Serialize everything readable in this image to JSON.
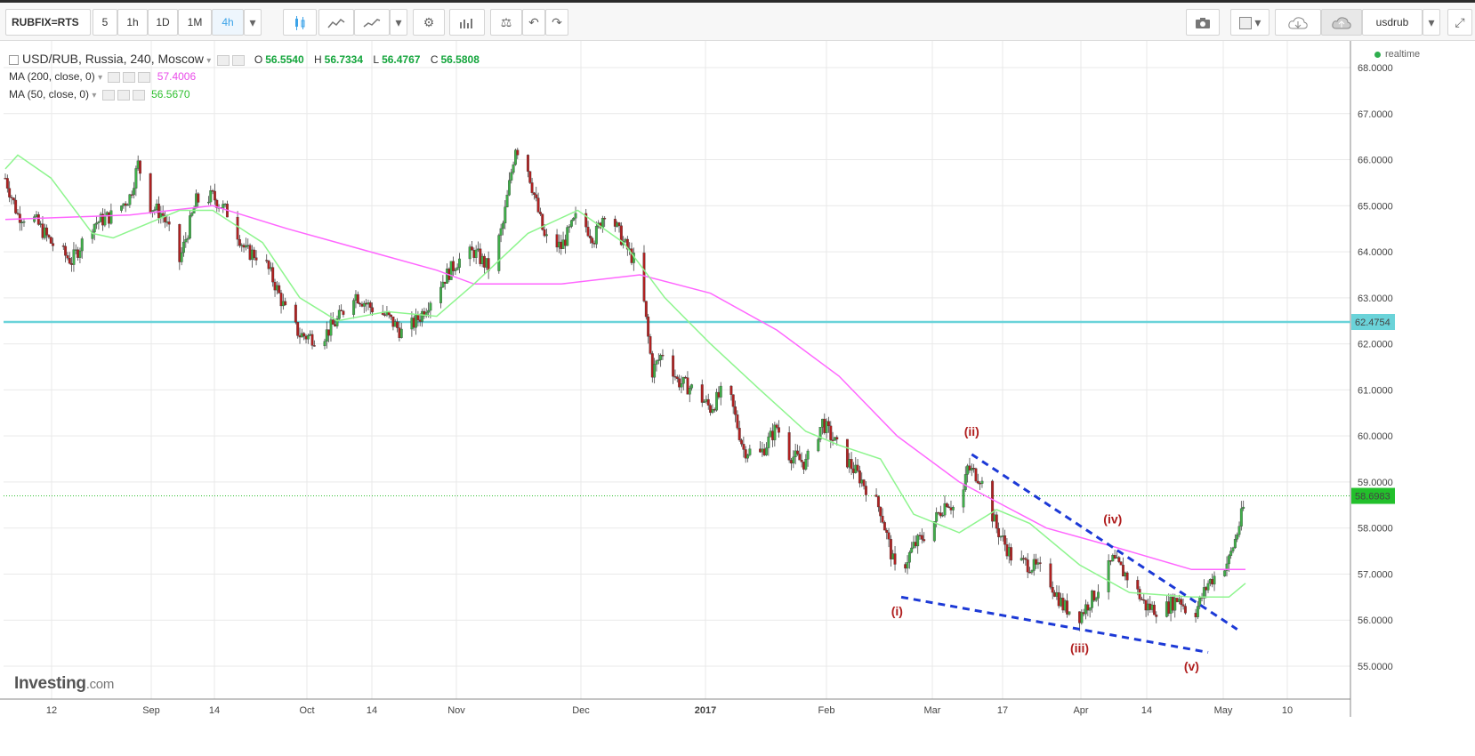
{
  "toolbar": {
    "symbol": "RUBFIX=RTS",
    "intervals": [
      "5",
      "1h",
      "1D",
      "1M",
      "4h"
    ],
    "active_interval": "4h",
    "right_label": "usdrub",
    "icons": [
      "chevron-down-icon",
      "candles-icon",
      "line-chart-icon",
      "area-chart-icon",
      "settings-icon",
      "indicators-icon",
      "compare-icon",
      "undo-icon",
      "redo-icon",
      "camera-icon",
      "template-icon",
      "cloud-download-icon",
      "cloud-upload-icon",
      "fullscreen-icon"
    ]
  },
  "legend": {
    "main": "USD/RUB, Russia, 240, Moscow",
    "ohlc": [
      {
        "k": "O",
        "v": "56.5540"
      },
      {
        "k": "H",
        "v": "56.7334"
      },
      {
        "k": "L",
        "v": "56.4767"
      },
      {
        "k": "C",
        "v": "56.5808"
      }
    ],
    "ma200_label": "MA (200, close, 0)",
    "ma200_value": "57.4006",
    "ma50_label": "MA (50, close, 0)",
    "ma50_value": "56.5670",
    "realtime": "realtime"
  },
  "branding": {
    "name": "Investing",
    "suffix": ".com"
  },
  "colors": {
    "up": "#3fae49",
    "down": "#b02121",
    "ma200": "#ff66ff",
    "ma50": "#8ef58e",
    "support": "#6ad3d9",
    "trend": "#1c39d6",
    "wave_label": "#b01e1e",
    "current_price": "#2fbf2f",
    "grid": "#e9e9e9"
  },
  "chart_data": {
    "type": "candlestick",
    "title": "USD/RUB, Russia, 240, Moscow",
    "ylim": [
      55.0,
      68.0
    ],
    "y_ticks": [
      "55.0000",
      "56.0000",
      "57.0000",
      "58.0000",
      "59.0000",
      "60.0000",
      "61.0000",
      "62.0000",
      "63.0000",
      "64.0000",
      "65.0000",
      "66.0000",
      "67.0000",
      "68.0000"
    ],
    "x_ticks": [
      "12",
      "Sep",
      "14",
      "Oct",
      "14",
      "Nov",
      "Dec",
      "2017",
      "Feb",
      "Mar",
      "17",
      "Apr",
      "14",
      "May",
      "10"
    ],
    "price_path": [
      [
        "2016-08-01",
        65.6
      ],
      [
        "2016-08-04",
        64.8
      ],
      [
        "2016-08-08",
        64.7
      ],
      [
        "2016-08-12",
        64.2
      ],
      [
        "2016-08-17",
        63.8
      ],
      [
        "2016-08-22",
        64.6
      ],
      [
        "2016-08-27",
        64.8
      ],
      [
        "2016-08-31",
        65.2
      ],
      [
        "2016-09-02",
        65.9
      ],
      [
        "2016-09-05",
        65.0
      ],
      [
        "2016-09-08",
        64.8
      ],
      [
        "2016-09-12",
        63.8
      ],
      [
        "2016-09-16",
        65.1
      ],
      [
        "2016-09-20",
        65.2
      ],
      [
        "2016-09-24",
        64.8
      ],
      [
        "2016-09-28",
        64.0
      ],
      [
        "2016-10-02",
        63.9
      ],
      [
        "2016-10-05",
        63.3
      ],
      [
        "2016-10-08",
        62.6
      ],
      [
        "2016-10-11",
        62.2
      ],
      [
        "2016-10-16",
        62.1
      ],
      [
        "2016-10-20",
        62.5
      ],
      [
        "2016-10-24",
        63.1
      ],
      [
        "2016-10-28",
        62.8
      ],
      [
        "2016-11-01",
        62.6
      ],
      [
        "2016-11-05",
        62.2
      ],
      [
        "2016-11-09",
        62.6
      ],
      [
        "2016-11-13",
        63.2
      ],
      [
        "2016-11-18",
        63.8
      ],
      [
        "2016-11-22",
        64.0
      ],
      [
        "2016-11-26",
        63.6
      ],
      [
        "2016-11-29",
        64.6
      ],
      [
        "2016-12-02",
        66.3
      ],
      [
        "2016-12-05",
        65.8
      ],
      [
        "2016-12-09",
        64.3
      ],
      [
        "2016-12-13",
        64.1
      ],
      [
        "2016-12-17",
        64.8
      ],
      [
        "2016-12-21",
        64.3
      ],
      [
        "2016-12-24",
        65.0
      ],
      [
        "2016-12-28",
        64.2
      ],
      [
        "2017-01-01",
        63.6
      ],
      [
        "2017-01-04",
        61.4
      ],
      [
        "2017-01-07",
        61.9
      ],
      [
        "2017-01-10",
        61.2
      ],
      [
        "2017-01-14",
        61.0
      ],
      [
        "2017-01-18",
        60.6
      ],
      [
        "2017-01-22",
        61.1
      ],
      [
        "2017-01-26",
        59.7
      ],
      [
        "2017-01-30",
        59.6
      ],
      [
        "2017-02-03",
        60.2
      ],
      [
        "2017-02-06",
        59.6
      ],
      [
        "2017-02-10",
        59.4
      ],
      [
        "2017-02-14",
        60.3
      ],
      [
        "2017-02-18",
        59.7
      ],
      [
        "2017-02-23",
        59.1
      ],
      [
        "2017-02-28",
        58.4
      ],
      [
        "2017-03-04",
        56.9
      ],
      [
        "2017-03-08",
        57.6
      ],
      [
        "2017-03-12",
        58.0
      ],
      [
        "2017-03-16",
        58.6
      ],
      [
        "2017-03-19",
        58.3
      ],
      [
        "2017-03-21",
        59.3
      ],
      [
        "2017-03-24",
        59.1
      ],
      [
        "2017-03-28",
        58.0
      ],
      [
        "2017-04-01",
        57.3
      ],
      [
        "2017-04-05",
        57.2
      ],
      [
        "2017-04-09",
        57.0
      ],
      [
        "2017-04-13",
        56.3
      ],
      [
        "2017-04-17",
        56.1
      ],
      [
        "2017-04-21",
        56.6
      ],
      [
        "2017-04-25",
        57.3
      ],
      [
        "2017-04-29",
        56.9
      ],
      [
        "2017-05-03",
        56.3
      ],
      [
        "2017-05-07",
        56.2
      ],
      [
        "2017-05-11",
        56.5
      ],
      [
        "2017-05-14",
        56.0
      ],
      [
        "2017-05-18",
        56.8
      ],
      [
        "2017-05-21",
        57.1
      ],
      [
        "2017-05-23",
        57.3
      ],
      [
        "2017-05-25",
        57.9
      ],
      [
        "2017-05-27",
        58.6
      ]
    ],
    "ma200_path": [
      [
        "2016-08-01",
        64.7
      ],
      [
        "2016-08-31",
        64.8
      ],
      [
        "2016-09-20",
        65.0
      ],
      [
        "2016-10-08",
        64.5
      ],
      [
        "2016-10-28",
        64.0
      ],
      [
        "2016-11-13",
        63.6
      ],
      [
        "2016-11-22",
        63.3
      ],
      [
        "2016-12-13",
        63.3
      ],
      [
        "2017-01-01",
        63.5
      ],
      [
        "2017-01-18",
        63.1
      ],
      [
        "2017-02-03",
        62.3
      ],
      [
        "2017-02-18",
        61.3
      ],
      [
        "2017-03-04",
        60.0
      ],
      [
        "2017-03-19",
        59.0
      ],
      [
        "2017-04-09",
        58.0
      ],
      [
        "2017-04-25",
        57.6
      ],
      [
        "2017-05-14",
        57.1
      ],
      [
        "2017-05-27",
        57.1
      ]
    ],
    "ma50_path": [
      [
        "2016-08-01",
        65.8
      ],
      [
        "2016-08-04",
        66.1
      ],
      [
        "2016-08-12",
        65.6
      ],
      [
        "2016-08-22",
        64.4
      ],
      [
        "2016-08-27",
        64.3
      ],
      [
        "2016-09-12",
        64.9
      ],
      [
        "2016-09-20",
        64.9
      ],
      [
        "2016-10-02",
        64.2
      ],
      [
        "2016-10-11",
        63.0
      ],
      [
        "2016-10-20",
        62.5
      ],
      [
        "2016-11-01",
        62.7
      ],
      [
        "2016-11-13",
        62.6
      ],
      [
        "2016-11-22",
        63.3
      ],
      [
        "2016-12-05",
        64.4
      ],
      [
        "2016-12-17",
        64.9
      ],
      [
        "2016-12-28",
        64.2
      ],
      [
        "2017-01-07",
        63.0
      ],
      [
        "2017-01-18",
        62.0
      ],
      [
        "2017-01-30",
        61.0
      ],
      [
        "2017-02-10",
        60.1
      ],
      [
        "2017-02-18",
        59.8
      ],
      [
        "2017-02-28",
        59.5
      ],
      [
        "2017-03-08",
        58.3
      ],
      [
        "2017-03-19",
        57.9
      ],
      [
        "2017-03-28",
        58.4
      ],
      [
        "2017-04-05",
        58.1
      ],
      [
        "2017-04-17",
        57.2
      ],
      [
        "2017-04-29",
        56.6
      ],
      [
        "2017-05-14",
        56.5
      ],
      [
        "2017-05-23",
        56.5
      ],
      [
        "2017-05-27",
        56.8
      ]
    ],
    "horizontal_lines": [
      {
        "value": 62.4754,
        "label": "62.4754"
      },
      {
        "value": 58.6983,
        "label": "58.6983"
      }
    ],
    "trendlines": [
      {
        "start": [
          "2017-03-05",
          56.5
        ],
        "end": [
          "2017-05-18",
          55.3
        ]
      },
      {
        "start": [
          "2017-03-22",
          59.6
        ],
        "end": [
          "2017-05-25",
          55.8
        ]
      }
    ],
    "wave_labels": [
      {
        "text": "(i)",
        "at": [
          "2017-03-04",
          56.1
        ]
      },
      {
        "text": "(ii)",
        "at": [
          "2017-03-22",
          60.0
        ]
      },
      {
        "text": "(iii)",
        "at": [
          "2017-04-17",
          55.3
        ]
      },
      {
        "text": "(iv)",
        "at": [
          "2017-04-25",
          58.1
        ]
      },
      {
        "text": "(v)",
        "at": [
          "2017-05-14",
          54.9
        ]
      }
    ],
    "grid": true,
    "price_axis_side": "right"
  }
}
